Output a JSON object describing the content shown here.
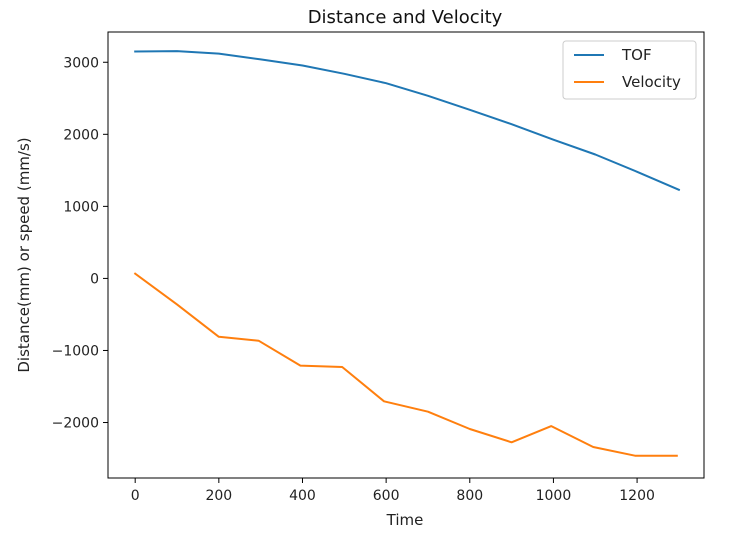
{
  "chart_data": {
    "type": "line",
    "title": "Distance and Velocity",
    "xlabel": "Time",
    "ylabel": "Distance(mm) or speed (mm/s)",
    "xlim": [
      -65,
      1360
    ],
    "ylim": [
      -2770,
      3420
    ],
    "xticks": [
      0,
      200,
      400,
      600,
      800,
      1000,
      1200
    ],
    "xtick_labels": [
      "0",
      "200",
      "400",
      "600",
      "800",
      "1000",
      "1200"
    ],
    "yticks": [
      3000,
      2000,
      1000,
      0,
      -1000,
      -2000
    ],
    "ytick_labels": [
      "3000",
      "2000",
      "1000",
      "0",
      "−1000",
      "−2000"
    ],
    "grid": false,
    "legend_position": "top-right",
    "series": [
      {
        "name": "TOF",
        "color": "#1f77b4",
        "x": [
          0,
          100,
          200,
          300,
          400,
          500,
          600,
          700,
          800,
          900,
          1000,
          1100,
          1200,
          1300
        ],
        "y": [
          3150,
          3155,
          3120,
          3040,
          2955,
          2840,
          2710,
          2535,
          2340,
          2140,
          1925,
          1720,
          1480,
          1230
        ]
      },
      {
        "name": "Velocity",
        "color": "#ff7f0e",
        "x": [
          0,
          100,
          200,
          295,
          395,
          495,
          595,
          700,
          800,
          900,
          995,
          1095,
          1195,
          1295
        ],
        "y": [
          65,
          -360,
          -810,
          -865,
          -1210,
          -1230,
          -1705,
          -1850,
          -2090,
          -2275,
          -2050,
          -2340,
          -2460,
          -2460
        ]
      }
    ]
  }
}
